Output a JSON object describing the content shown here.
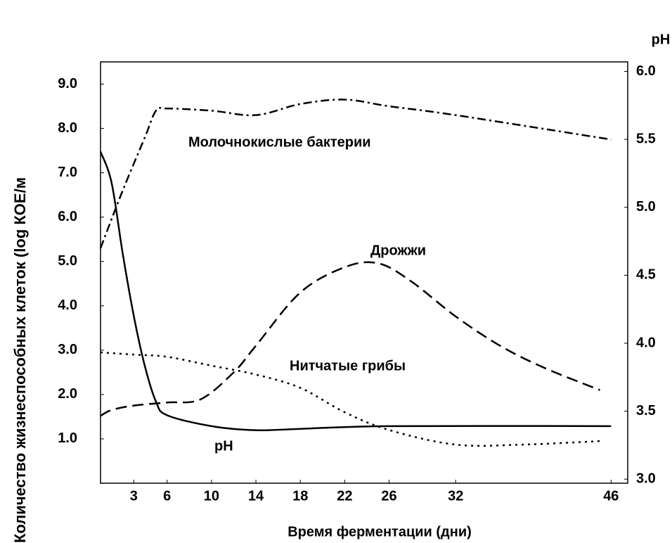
{
  "chart_data": {
    "type": "line",
    "xlabel": "Время ферментации (дни)",
    "ylabel": "Количество жизнеспособных клеток (log КОЕ/м",
    "y2label": "pH",
    "xlim": [
      0,
      47.5
    ],
    "xticks": [
      3,
      6,
      10,
      14,
      18,
      22,
      26,
      32,
      46
    ],
    "ylim": [
      0,
      9.5
    ],
    "yticks": [
      {
        "value": 1,
        "label": "1.0"
      },
      {
        "value": 2,
        "label": "2.0"
      },
      {
        "value": 3,
        "label": "3.0"
      },
      {
        "value": 4,
        "label": "4.0"
      },
      {
        "value": 5,
        "label": "5.0"
      },
      {
        "value": 6,
        "label": "6.0"
      },
      {
        "value": 7,
        "label": "7.0"
      },
      {
        "value": 8,
        "label": "8.0"
      },
      {
        "value": 9,
        "label": "9.0"
      }
    ],
    "y2lim": [
      2.97,
      6.07
    ],
    "y2ticks": [
      {
        "value": 3,
        "label": "3.0"
      },
      {
        "value": 3.5,
        "label": "3.5"
      },
      {
        "value": 4,
        "label": "4.0"
      },
      {
        "value": 4.5,
        "label": "4.5"
      },
      {
        "value": 5,
        "label": "5.0"
      },
      {
        "value": 5.5,
        "label": "5.5"
      },
      {
        "value": 6,
        "label": "6.0"
      }
    ],
    "series": [
      {
        "name": "Молочнокислые бактерии",
        "color": "#000000",
        "dash": "dashdot",
        "x": [
          0,
          2,
          4,
          5,
          6,
          10,
          14,
          18,
          22,
          26,
          32,
          46
        ],
        "values": [
          5.3,
          6.6,
          7.8,
          8.4,
          8.45,
          8.4,
          8.3,
          8.55,
          8.65,
          8.5,
          8.3,
          7.75
        ]
      },
      {
        "name": "Дрожжи",
        "color": "#000000",
        "dash": "dashed",
        "x": [
          0,
          1,
          3,
          6,
          9,
          12,
          14,
          18,
          22,
          25,
          28,
          32,
          36,
          40,
          45
        ],
        "values": [
          1.52,
          1.65,
          1.75,
          1.82,
          1.89,
          2.5,
          3.1,
          4.3,
          4.87,
          4.96,
          4.55,
          3.76,
          3.1,
          2.6,
          2.1
        ]
      },
      {
        "name": "Нитчатые грибы",
        "color": "#000000",
        "dash": "dotted",
        "x": [
          0,
          3,
          6,
          10,
          14,
          18,
          22,
          26,
          32,
          38,
          45
        ],
        "values": [
          2.95,
          2.9,
          2.85,
          2.65,
          2.45,
          2.15,
          1.6,
          1.2,
          0.87,
          0.87,
          0.95
        ]
      },
      {
        "name": "pH",
        "color": "#000000",
        "dash": "solid",
        "axis": "y2",
        "x": [
          0,
          1,
          2,
          3,
          4,
          5,
          6,
          10,
          14,
          18,
          26,
          46
        ],
        "values": [
          5.41,
          5.18,
          4.66,
          4.2,
          3.83,
          3.57,
          3.47,
          3.39,
          3.36,
          3.37,
          3.39,
          3.39
        ]
      }
    ]
  }
}
